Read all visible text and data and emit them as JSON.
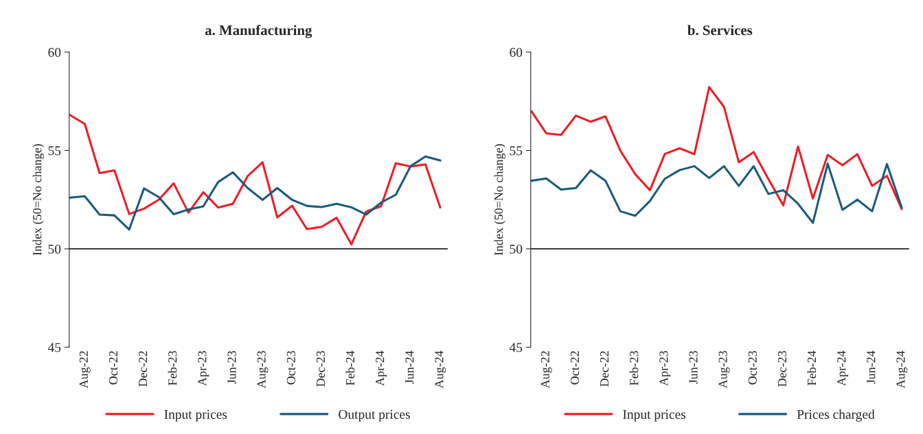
{
  "chart_data": [
    {
      "type": "line",
      "title": "a. Manufacturing",
      "ylabel": "Index (50=No change)",
      "categories": [
        null,
        "Aug-22",
        null,
        "Oct-22",
        null,
        "Dec-22",
        null,
        "Feb-23",
        null,
        "Apr-23",
        null,
        "Jun-23",
        null,
        "Aug-23",
        null,
        "Oct-23",
        null,
        "Dec-23",
        null,
        "Feb-24",
        null,
        "Apr-24",
        null,
        "Jun-24",
        null,
        "Aug-24"
      ],
      "series": [
        {
          "name": "Input prices",
          "color": "#ee1c25",
          "values": [
            56.8,
            56.35,
            53.85,
            53.99,
            51.77,
            52.04,
            52.5,
            53.33,
            51.84,
            52.88,
            52.1,
            52.29,
            53.7,
            54.4,
            51.6,
            52.19,
            51.0,
            51.12,
            51.58,
            50.23,
            51.9,
            52.16,
            54.35,
            54.18,
            54.29,
            52.1
          ]
        },
        {
          "name": "Output prices",
          "color": "#1a5a7a",
          "values": [
            52.6,
            52.67,
            51.74,
            51.7,
            50.98,
            53.07,
            52.63,
            51.76,
            52.0,
            52.16,
            53.39,
            53.89,
            53.09,
            52.49,
            53.09,
            52.49,
            52.18,
            52.12,
            52.29,
            52.11,
            51.74,
            52.35,
            52.75,
            54.2,
            54.69,
            54.49
          ]
        }
      ],
      "ylim": [
        45,
        60
      ],
      "yticks": [
        45,
        50,
        55,
        60
      ],
      "ref_lines": [
        {
          "axis": "y",
          "value": 50,
          "color": "#222222"
        }
      ],
      "grid": false,
      "legend": "bottom"
    },
    {
      "type": "line",
      "title": "b. Services",
      "ylabel": "Index (50=No change)",
      "categories": [
        null,
        "Aug-22",
        null,
        "Oct-22",
        null,
        "Dec-22",
        null,
        "Feb-23",
        null,
        "Apr-23",
        null,
        "Jun-23",
        null,
        "Aug-23",
        null,
        "Oct-23",
        null,
        "Dec-23",
        null,
        "Feb-24",
        null,
        "Apr-24",
        null,
        "Jun-24",
        null,
        "Aug-24"
      ],
      "series": [
        {
          "name": "Input prices",
          "color": "#ee1c25",
          "values": [
            56.99,
            55.87,
            55.79,
            56.77,
            56.46,
            56.73,
            54.99,
            53.8,
            52.98,
            54.82,
            55.11,
            54.81,
            58.22,
            57.21,
            54.4,
            54.92,
            53.54,
            52.21,
            55.2,
            52.56,
            54.77,
            54.25,
            54.81,
            53.2,
            53.71,
            52.02
          ]
        },
        {
          "name": "Prices charged",
          "color": "#1a5a7a",
          "values": [
            53.46,
            53.58,
            53.01,
            53.09,
            53.99,
            53.46,
            51.91,
            51.68,
            52.43,
            53.56,
            54.0,
            54.2,
            53.6,
            54.2,
            53.2,
            54.2,
            52.79,
            52.98,
            52.29,
            51.32,
            54.33,
            51.98,
            52.5,
            51.91,
            54.31,
            52.1
          ]
        }
      ],
      "ylim": [
        45,
        60
      ],
      "yticks": [
        45,
        50,
        55,
        60
      ],
      "ref_lines": [
        {
          "axis": "y",
          "value": 50,
          "color": "#222222"
        }
      ],
      "grid": false,
      "legend": "bottom"
    }
  ]
}
